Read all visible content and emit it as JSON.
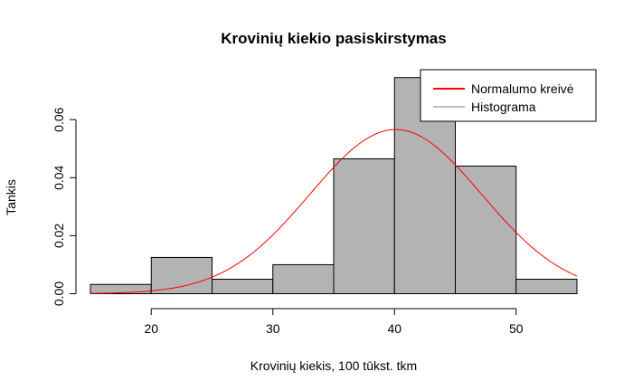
{
  "chart_data": {
    "type": "bar",
    "title": "Krovinių kiekio pasiskirstymas",
    "xlabel": "Krovinių kiekis, 100 tūkst. tkm",
    "ylabel": "Tankis",
    "xlim": [
      15,
      55
    ],
    "ylim": [
      0,
      0.075
    ],
    "x_ticks": [
      20,
      30,
      40,
      50
    ],
    "y_ticks": [
      0.0,
      0.02,
      0.04,
      0.06
    ],
    "y_tick_labels": [
      "0.00",
      "0.02",
      "0.04",
      "0.06"
    ],
    "bin_edges": [
      15,
      20,
      25,
      30,
      35,
      40,
      45,
      50,
      55
    ],
    "histogram": {
      "name": "Histograma",
      "values": [
        0.0032,
        0.0125,
        0.005,
        0.01,
        0.0465,
        0.0745,
        0.044,
        0.005
      ],
      "fill_color": "#b3b3b3",
      "legend_color": "#bebebe"
    },
    "normal_curve": {
      "name": "Normalumo kreivė",
      "mean": 40.1,
      "sd": 7.05,
      "color": "#ff0000"
    },
    "legend_position": "top-right"
  }
}
